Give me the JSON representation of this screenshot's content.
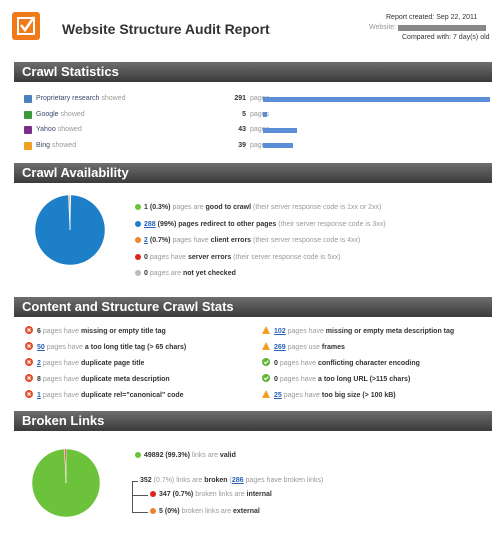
{
  "header": {
    "title": "Website Structure Audit Report",
    "created": "Report created: Sep 22, 2011",
    "website_label": "Website:",
    "compared": "Compared with: 7 day(s) old"
  },
  "crawl_statistics": {
    "title": "Crawl Statistics",
    "bar_color": "#5b8ed8",
    "rows": [
      {
        "name": "Proprietary research",
        "suffix": "showed",
        "value": 291,
        "unit": "pages",
        "icon_color": "#4a7fc1"
      },
      {
        "name": "Google",
        "suffix": "showed",
        "value": 5,
        "unit": "pages",
        "icon_color": "#3a9a3a"
      },
      {
        "name": "Yahoo",
        "suffix": "showed",
        "value": 43,
        "unit": "pages",
        "icon_color": "#7b2d8e"
      },
      {
        "name": "Bing",
        "suffix": "showed",
        "value": 39,
        "unit": "pages",
        "icon_color": "#f0a020"
      }
    ]
  },
  "crawl_availability": {
    "title": "Crawl Availability",
    "items": [
      {
        "color": "#6cc23a",
        "parts": [
          {
            "t": 1,
            "s": "b"
          },
          {
            "t": "(0.3%)",
            "s": "b"
          },
          {
            "t": "pages are",
            "s": "g"
          },
          {
            "t": "good to crawl",
            "s": "b"
          },
          {
            "t": "(their server response code is 1xx or 2xx)",
            "s": "g"
          }
        ]
      },
      {
        "color": "#1e7fc9",
        "parts": [
          {
            "t": 288,
            "s": "l"
          },
          {
            "t": "(99%)",
            "s": "b"
          },
          {
            "t": "pages redirect to other pages",
            "s": "b"
          },
          {
            "t": "(their server response code is 3xx)",
            "s": "g"
          }
        ]
      },
      {
        "color": "#f0842c",
        "parts": [
          {
            "t": 2,
            "s": "l"
          },
          {
            "t": "(0.7%)",
            "s": "b"
          },
          {
            "t": "pages have",
            "s": "g"
          },
          {
            "t": "client errors",
            "s": "b"
          },
          {
            "t": "(their server response code is 4xx)",
            "s": "g"
          }
        ]
      },
      {
        "color": "#e0241b",
        "parts": [
          {
            "t": 0,
            "s": "b"
          },
          {
            "t": "pages have",
            "s": "g"
          },
          {
            "t": "server errors",
            "s": "b"
          },
          {
            "t": "(their server response code is 5xx)",
            "s": "g"
          }
        ]
      },
      {
        "color": "#bbbbbb",
        "parts": [
          {
            "t": 0,
            "s": "b"
          },
          {
            "t": "pages are",
            "s": "g"
          },
          {
            "t": "not yet checked",
            "s": "b"
          }
        ]
      }
    ]
  },
  "content_structure": {
    "title": "Content and Structure Crawl Stats",
    "columns": [
      [
        {
          "icon": "error",
          "parts": [
            {
              "t": 6,
              "s": "b"
            },
            {
              "t": "pages have",
              "s": "g"
            },
            {
              "t": "missing or empty title tag",
              "s": "b"
            }
          ]
        },
        {
          "icon": "error",
          "parts": [
            {
              "t": 50,
              "s": "l"
            },
            {
              "t": "pages have",
              "s": "g"
            },
            {
              "t": "a too long title tag (> 65 chars)",
              "s": "b"
            }
          ]
        },
        {
          "icon": "error",
          "parts": [
            {
              "t": 2,
              "s": "l"
            },
            {
              "t": "pages have",
              "s": "g"
            },
            {
              "t": "duplicate page title",
              "s": "b"
            }
          ]
        },
        {
          "icon": "error",
          "parts": [
            {
              "t": 8,
              "s": "b"
            },
            {
              "t": "pages have",
              "s": "g"
            },
            {
              "t": "duplicate meta description",
              "s": "b"
            }
          ]
        },
        {
          "icon": "error",
          "parts": [
            {
              "t": 1,
              "s": "l"
            },
            {
              "t": "pages have",
              "s": "g"
            },
            {
              "t": "duplicate rel=\"canonical\" code",
              "s": "b"
            }
          ]
        }
      ],
      [
        {
          "icon": "warning",
          "parts": [
            {
              "t": 102,
              "s": "l"
            },
            {
              "t": "pages have",
              "s": "g"
            },
            {
              "t": "missing or empty meta description tag",
              "s": "b"
            }
          ]
        },
        {
          "icon": "warning",
          "parts": [
            {
              "t": 269,
              "s": "l"
            },
            {
              "t": "pages use",
              "s": "g"
            },
            {
              "t": "frames",
              "s": "b"
            }
          ]
        },
        {
          "icon": "ok",
          "parts": [
            {
              "t": 0,
              "s": "b"
            },
            {
              "t": "pages have",
              "s": "g"
            },
            {
              "t": "conflicting character encoding",
              "s": "b"
            }
          ]
        },
        {
          "icon": "ok",
          "parts": [
            {
              "t": 0,
              "s": "b"
            },
            {
              "t": "pages have",
              "s": "g"
            },
            {
              "t": "a too long URL (>115 chars)",
              "s": "b"
            }
          ]
        },
        {
          "icon": "warning",
          "parts": [
            {
              "t": 25,
              "s": "l"
            },
            {
              "t": "pages have",
              "s": "g"
            },
            {
              "t": "too big size (> 100 kB)",
              "s": "b"
            }
          ]
        }
      ]
    ]
  },
  "broken_links": {
    "title": "Broken Links",
    "items": [
      {
        "color": "#6cc23a",
        "parts": [
          {
            "t": 49892,
            "s": "b"
          },
          {
            "t": "(99.3%)",
            "s": "b"
          },
          {
            "t": "links are",
            "s": "g"
          },
          {
            "t": "valid",
            "s": "b"
          }
        ]
      },
      {
        "color": "#e0241b",
        "dot": false,
        "parts": [
          {
            "t": 352,
            "s": "b"
          },
          {
            "t": "(0.7%)",
            "s": "g"
          },
          {
            "t": "links are",
            "s": "g"
          },
          {
            "t": "broken",
            "s": "b"
          },
          {
            "t": "(",
            "s": "g",
            "tight": true
          },
          {
            "t": 286,
            "s": "l"
          },
          {
            "t": "pages have broken links)",
            "s": "g"
          }
        ]
      },
      {
        "color": "#e0241b",
        "level": 1,
        "parts": [
          {
            "t": 347,
            "s": "b"
          },
          {
            "t": "(0.7%)",
            "s": "b"
          },
          {
            "t": "broken links are",
            "s": "g"
          },
          {
            "t": "internal",
            "s": "b"
          }
        ]
      },
      {
        "color": "#f0842c",
        "level": 1,
        "parts": [
          {
            "t": 5,
            "s": "b"
          },
          {
            "t": "(0%)",
            "s": "b"
          },
          {
            "t": "broken links are",
            "s": "g"
          },
          {
            "t": "external",
            "s": "b"
          }
        ]
      }
    ]
  }
}
